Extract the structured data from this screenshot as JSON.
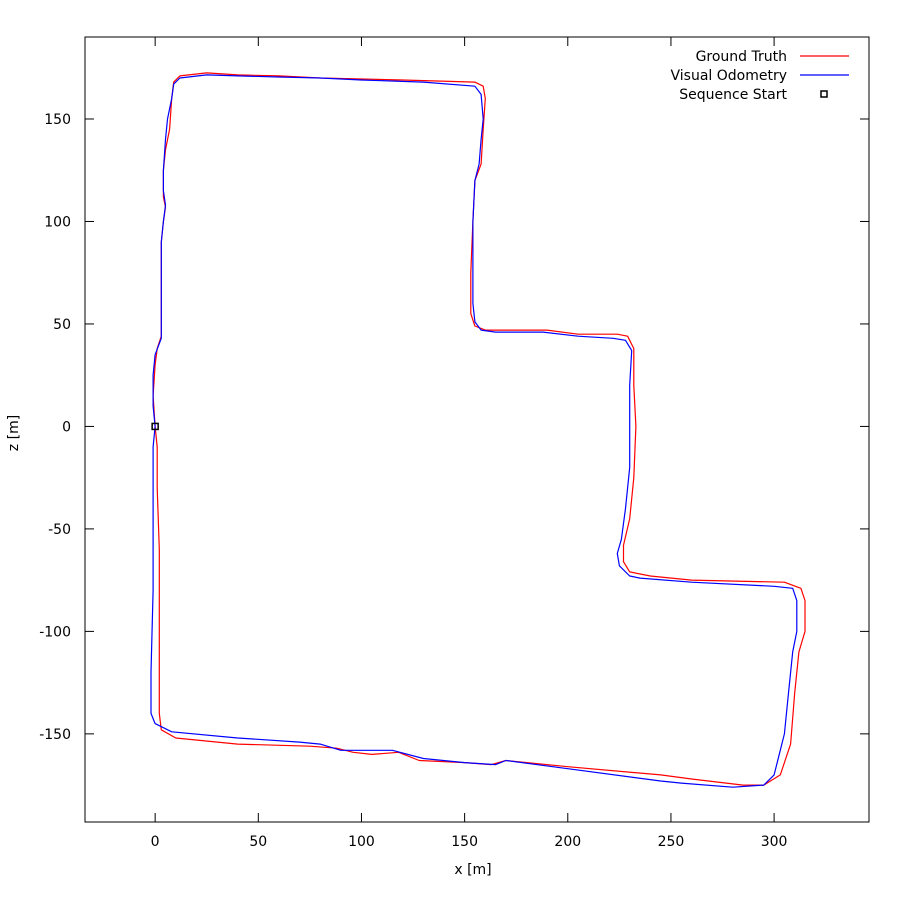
{
  "chart_data": {
    "type": "line",
    "title": "",
    "xlabel": "x [m]",
    "ylabel": "z [m]",
    "xlim": [
      -34,
      346
    ],
    "ylim": [
      -193,
      190
    ],
    "xticks": [
      0,
      50,
      100,
      150,
      200,
      250,
      300
    ],
    "yticks": [
      -150,
      -100,
      -50,
      0,
      50,
      100,
      150
    ],
    "grid": false,
    "legend_position": "top-right",
    "series": [
      {
        "name": "Ground Truth",
        "color": "#ff0000",
        "points": [
          [
            0,
            0
          ],
          [
            1,
            -10
          ],
          [
            1,
            -30
          ],
          [
            2,
            -60
          ],
          [
            2,
            -100
          ],
          [
            2,
            -140
          ],
          [
            3,
            -148
          ],
          [
            10,
            -152
          ],
          [
            40,
            -155
          ],
          [
            75,
            -156
          ],
          [
            88,
            -157
          ],
          [
            96,
            -159
          ],
          [
            105,
            -160
          ],
          [
            118,
            -159
          ],
          [
            128,
            -163
          ],
          [
            150,
            -164
          ],
          [
            163,
            -165
          ],
          [
            170,
            -163
          ],
          [
            200,
            -166
          ],
          [
            245,
            -170
          ],
          [
            260,
            -172
          ],
          [
            285,
            -175
          ],
          [
            295,
            -175
          ],
          [
            303,
            -170
          ],
          [
            308,
            -155
          ],
          [
            310,
            -130
          ],
          [
            312,
            -110
          ],
          [
            315,
            -100
          ],
          [
            315,
            -85
          ],
          [
            313,
            -79
          ],
          [
            305,
            -76
          ],
          [
            260,
            -75
          ],
          [
            240,
            -73
          ],
          [
            230,
            -71
          ],
          [
            227,
            -66
          ],
          [
            227,
            -58
          ],
          [
            230,
            -45
          ],
          [
            232,
            -25
          ],
          [
            233,
            0
          ],
          [
            232,
            20
          ],
          [
            232,
            38
          ],
          [
            229,
            44
          ],
          [
            224,
            45
          ],
          [
            205,
            45
          ],
          [
            190,
            47
          ],
          [
            160,
            47
          ],
          [
            155,
            49
          ],
          [
            153,
            55
          ],
          [
            153,
            75
          ],
          [
            154,
            100
          ],
          [
            155,
            120
          ],
          [
            158,
            128
          ],
          [
            159,
            145
          ],
          [
            160,
            160
          ],
          [
            159,
            166
          ],
          [
            155,
            168
          ],
          [
            120,
            169
          ],
          [
            80,
            170
          ],
          [
            60,
            171
          ],
          [
            40,
            171.5
          ],
          [
            25,
            172.5
          ],
          [
            12,
            171
          ],
          [
            9,
            168
          ],
          [
            8,
            160
          ],
          [
            7,
            145
          ],
          [
            5,
            135
          ],
          [
            4,
            125
          ],
          [
            4,
            112
          ],
          [
            5,
            107
          ],
          [
            4,
            100
          ],
          [
            3,
            90
          ],
          [
            3,
            70
          ],
          [
            3,
            50
          ],
          [
            3,
            44
          ],
          [
            1,
            38
          ],
          [
            0,
            30
          ],
          [
            -1,
            15
          ],
          [
            0,
            0
          ]
        ]
      },
      {
        "name": "Visual Odometry",
        "color": "#0000ff",
        "points": [
          [
            0,
            0
          ],
          [
            -1,
            -10
          ],
          [
            -1,
            -40
          ],
          [
            -1,
            -80
          ],
          [
            -2,
            -120
          ],
          [
            -2,
            -140
          ],
          [
            0,
            -145
          ],
          [
            8,
            -149
          ],
          [
            40,
            -152
          ],
          [
            70,
            -154
          ],
          [
            80,
            -155
          ],
          [
            90,
            -158
          ],
          [
            100,
            -158
          ],
          [
            115,
            -158
          ],
          [
            130,
            -162
          ],
          [
            150,
            -164
          ],
          [
            165,
            -165
          ],
          [
            170,
            -163
          ],
          [
            200,
            -167
          ],
          [
            245,
            -173
          ],
          [
            255,
            -174
          ],
          [
            280,
            -176
          ],
          [
            295,
            -175
          ],
          [
            300,
            -170
          ],
          [
            305,
            -150
          ],
          [
            307,
            -130
          ],
          [
            309,
            -110
          ],
          [
            311,
            -100
          ],
          [
            311,
            -85
          ],
          [
            309,
            -79
          ],
          [
            300,
            -78
          ],
          [
            260,
            -76
          ],
          [
            235,
            -74
          ],
          [
            230,
            -73
          ],
          [
            225,
            -68
          ],
          [
            224,
            -62
          ],
          [
            226,
            -55
          ],
          [
            228,
            -40
          ],
          [
            230,
            -20
          ],
          [
            230,
            0
          ],
          [
            230,
            20
          ],
          [
            231,
            37
          ],
          [
            228,
            42
          ],
          [
            222,
            43
          ],
          [
            205,
            44
          ],
          [
            188,
            46
          ],
          [
            165,
            46
          ],
          [
            158,
            47
          ],
          [
            155,
            51
          ],
          [
            154,
            60
          ],
          [
            154,
            80
          ],
          [
            154,
            100
          ],
          [
            155,
            120
          ],
          [
            157,
            128
          ],
          [
            158,
            140
          ],
          [
            159,
            150
          ],
          [
            158,
            162
          ],
          [
            155,
            166
          ],
          [
            130,
            168
          ],
          [
            100,
            169
          ],
          [
            80,
            170
          ],
          [
            60,
            170.5
          ],
          [
            40,
            171
          ],
          [
            25,
            171.5
          ],
          [
            12,
            170
          ],
          [
            9,
            167
          ],
          [
            8,
            160
          ],
          [
            6,
            150
          ],
          [
            5,
            140
          ],
          [
            4,
            125
          ],
          [
            4,
            115
          ],
          [
            5,
            108
          ],
          [
            4,
            100
          ],
          [
            3,
            90
          ],
          [
            3,
            70
          ],
          [
            3,
            50
          ],
          [
            3,
            43
          ],
          [
            0,
            35
          ],
          [
            -1,
            25
          ],
          [
            -1,
            10
          ],
          [
            0,
            0
          ]
        ]
      }
    ],
    "markers": [
      {
        "name": "Sequence Start",
        "x": 0,
        "y": 0,
        "shape": "open-square",
        "color": "#000000"
      }
    ]
  }
}
